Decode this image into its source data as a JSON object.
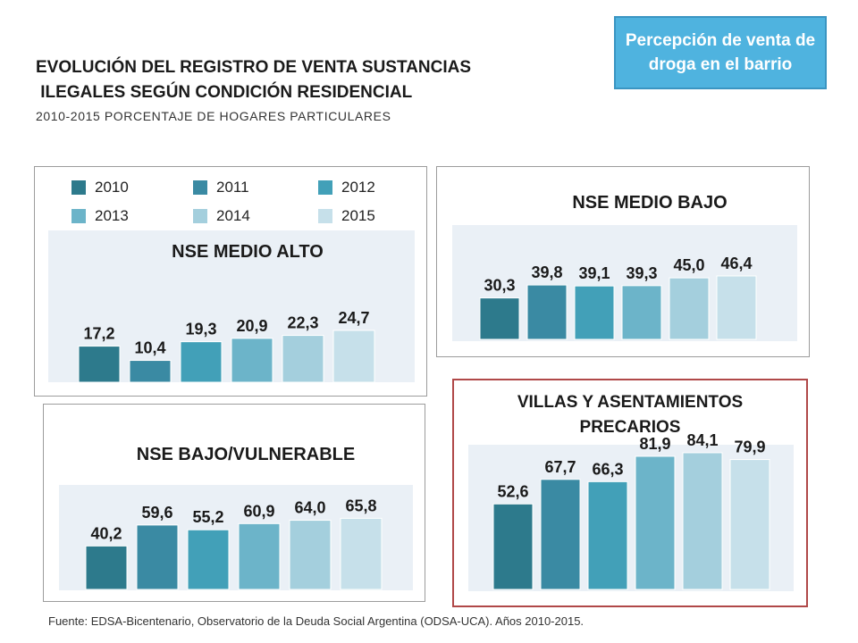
{
  "header": {
    "title": "EVOLUCIÓN DEL REGISTRO DE VENTA SUSTANCIAS\n ILEGALES SEGÚN CONDICIÓN RESIDENCIAL",
    "subtitle": "2010-2015 PORCENTAJE DE HOGARES PARTICULARES",
    "badge": "Percepción de venta de droga en el barrio"
  },
  "legend": {
    "items": [
      {
        "label": "2010",
        "color": "#2d7a8c"
      },
      {
        "label": "2011",
        "color": "#3a8aa3"
      },
      {
        "label": "2012",
        "color": "#42a0b8"
      },
      {
        "label": "2013",
        "color": "#6cb4c9"
      },
      {
        "label": "2014",
        "color": "#a4cfdd"
      },
      {
        "label": "2015",
        "color": "#c6e0ea"
      }
    ]
  },
  "source": "Fuente: EDSA-Bicentenario, Observatorio de la Deuda Social Argentina (ODSA-UCA). Años 2010-2015.",
  "chart_data": [
    {
      "type": "bar",
      "title": "NSE MEDIO ALTO",
      "categories": [
        "2010",
        "2011",
        "2012",
        "2013",
        "2014",
        "2015"
      ],
      "values": [
        17.2,
        10.4,
        19.3,
        20.9,
        22.3,
        24.7
      ],
      "labels": [
        "17,2",
        "10,4",
        "19,3",
        "20,9",
        "22,3",
        "24,7"
      ]
    },
    {
      "type": "bar",
      "title": "NSE MEDIO BAJO",
      "categories": [
        "2010",
        "2011",
        "2012",
        "2013",
        "2014",
        "2015"
      ],
      "values": [
        30.3,
        39.8,
        39.1,
        39.3,
        45.0,
        46.4
      ],
      "labels": [
        "30,3",
        "39,8",
        "39,1",
        "39,3",
        "45,0",
        "46,4"
      ]
    },
    {
      "type": "bar",
      "title": "NSE BAJO/VULNERABLE",
      "categories": [
        "2010",
        "2011",
        "2012",
        "2013",
        "2014",
        "2015"
      ],
      "values": [
        40.2,
        59.6,
        55.2,
        60.9,
        64.0,
        65.8
      ],
      "labels": [
        "40,2",
        "59,6",
        "55,2",
        "60,9",
        "64,0",
        "65,8"
      ]
    },
    {
      "type": "bar",
      "title": "VILLAS Y ASENTAMIENTOS PRECARIOS",
      "categories": [
        "2010",
        "2011",
        "2012",
        "2013",
        "2014",
        "2015"
      ],
      "values": [
        52.6,
        67.7,
        66.3,
        81.9,
        84.1,
        79.9
      ],
      "labels": [
        "52,6",
        "67,7",
        "66,3",
        "81,9",
        "84,1",
        "79,9"
      ]
    }
  ]
}
